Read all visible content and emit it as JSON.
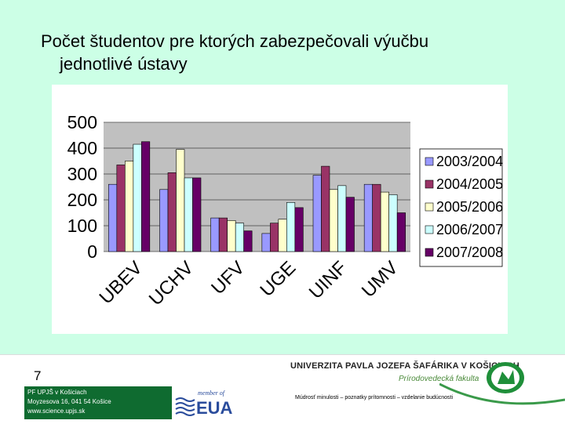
{
  "slide": {
    "title_line1": "Počet študentov pre ktorých zabezpečovali výučbu",
    "title_line2": "jednotlivé  ústavy"
  },
  "footer": {
    "page_number": "7",
    "address_lines": [
      "PF UPJŠ v Košiciach",
      "Moyzesova 16, 041 54 Košice",
      "www.science.upjs.sk"
    ],
    "eua_small": "member of",
    "eua_big": "EUA",
    "university": "UNIVERZITA PAVLA JOZEFA ŠAFÁRIKA V KOŠICIACH",
    "faculty": "Prírodovedecká fakulta",
    "motto": "Múdrosť minulosti – poznatky prítomnosti – vzdelanie budúcnosti"
  },
  "colors": {
    "background": "#ccffe6",
    "plot_area": "#c0c0c0",
    "footer_green": "#0f6b30"
  },
  "chart_data": {
    "type": "bar",
    "title": "",
    "xlabel": "",
    "ylabel": "",
    "ylim": [
      0,
      500
    ],
    "yticks": [
      0,
      100,
      200,
      300,
      400,
      500
    ],
    "grid": true,
    "legend_position": "right",
    "categories": [
      "UBEV",
      "UCHV",
      "UFV",
      "UGE",
      "UINF",
      "UMV"
    ],
    "series": [
      {
        "name": "2003/2004",
        "color": "#9999ff",
        "values": [
          260,
          240,
          130,
          70,
          295,
          260
        ]
      },
      {
        "name": "2004/2005",
        "color": "#993366",
        "values": [
          335,
          305,
          130,
          110,
          330,
          260
        ]
      },
      {
        "name": "2005/2006",
        "color": "#ffffcc",
        "values": [
          350,
          395,
          120,
          125,
          240,
          230
        ]
      },
      {
        "name": "2006/2007",
        "color": "#ccffff",
        "values": [
          415,
          285,
          110,
          190,
          255,
          220
        ]
      },
      {
        "name": "2007/2008",
        "color": "#660066",
        "values": [
          425,
          285,
          80,
          170,
          210,
          150
        ]
      }
    ]
  }
}
